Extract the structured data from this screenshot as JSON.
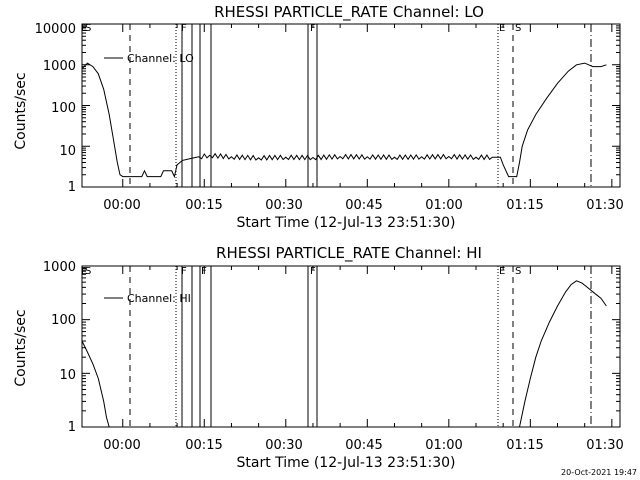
{
  "footer": {
    "timestamp": "20-Oct-2021 19:47"
  },
  "chart_data": [
    {
      "type": "line",
      "title": "RHESSI PARTICLE_RATE Channel: LO",
      "xlabel": "Start Time (12-Jul-13 23:51:30)",
      "ylabel": "Counts/sec",
      "y_scale": "log",
      "ylim": [
        1,
        10000
      ],
      "xlim_minutes": [
        -7.5,
        91.5
      ],
      "xticks": [
        "00:00",
        "00:15",
        "00:30",
        "00:45",
        "01:00",
        "01:15",
        "01:30"
      ],
      "yticks": [
        "1",
        "10",
        "100",
        "1000",
        "10000"
      ],
      "legend": {
        "entries": [
          "Channel: LO"
        ],
        "placement": "top-left"
      },
      "markers": [
        "E",
        "S",
        "F",
        "F",
        "E",
        "S"
      ],
      "series": [
        {
          "name": "Channel: LO",
          "x_minutes": [
            -7.5,
            -6.5,
            -5.5,
            -4.5,
            -3.5,
            -2.5,
            -1.5,
            -1.0,
            -0.5,
            0.0,
            1.0,
            2.5,
            3.5,
            4.0,
            4.5,
            6.0,
            7.0,
            7.5,
            8.0,
            9.0,
            9.5,
            10.0,
            11.0,
            12.5,
            14.0,
            16.0,
            20.0,
            25.0,
            30.0,
            35.0,
            40.0,
            45.0,
            50.0,
            55.0,
            60.0,
            65.0,
            68.0,
            69.5,
            70.0,
            71.0,
            72.0,
            72.5,
            73.0,
            73.5,
            74.5,
            76.0,
            78.0,
            80.0,
            82.0,
            83.5,
            85.0,
            86.5,
            88.0,
            89.0
          ],
          "y": [
            800,
            1100,
            900,
            600,
            250,
            60,
            10,
            4,
            2,
            1.8,
            1.8,
            1.8,
            1.8,
            2.5,
            1.8,
            1.8,
            1.8,
            2.5,
            2.5,
            2.5,
            1.8,
            3.5,
            4.5,
            5,
            5.5,
            6,
            5.5,
            5.2,
            5.4,
            5.3,
            5.6,
            5.5,
            5.4,
            5.5,
            5.6,
            5.4,
            5.4,
            5.4,
            3.5,
            1.8,
            1.8,
            1.8,
            4,
            10,
            25,
            60,
            150,
            350,
            700,
            1000,
            1100,
            900,
            900,
            1000
          ]
        }
      ]
    },
    {
      "type": "line",
      "title": "RHESSI PARTICLE_RATE Channel: HI",
      "xlabel": "Start Time (12-Jul-13 23:51:30)",
      "ylabel": "Counts/sec",
      "y_scale": "log",
      "ylim": [
        1,
        1000
      ],
      "xlim_minutes": [
        -7.5,
        91.5
      ],
      "xticks": [
        "00:00",
        "00:15",
        "00:30",
        "00:45",
        "01:00",
        "01:15",
        "01:30"
      ],
      "yticks": [
        "1",
        "10",
        "100",
        "1000"
      ],
      "legend": {
        "entries": [
          "Channel: HI"
        ],
        "placement": "top-left"
      },
      "markers": [
        "E",
        "S",
        "F",
        "F",
        "F",
        "E",
        "S"
      ],
      "series": [
        {
          "name": "Channel: HI",
          "x_minutes": [
            -7.5,
            -6.5,
            -5.5,
            -4.5,
            -3.5,
            -3.0,
            -2.5
          ],
          "y": [
            40,
            25,
            15,
            8,
            3,
            1.5,
            1
          ]
        },
        {
          "name": "Channel: HI",
          "x_minutes": [
            73.0,
            74.0,
            75.0,
            76.0,
            77.0,
            78.5,
            80.0,
            81.5,
            82.5,
            83.5,
            84.5,
            85.5,
            86.5,
            88.0,
            89.0
          ],
          "y": [
            1,
            3,
            8,
            20,
            40,
            90,
            180,
            330,
            450,
            530,
            480,
            400,
            330,
            250,
            180
          ]
        }
      ]
    }
  ]
}
